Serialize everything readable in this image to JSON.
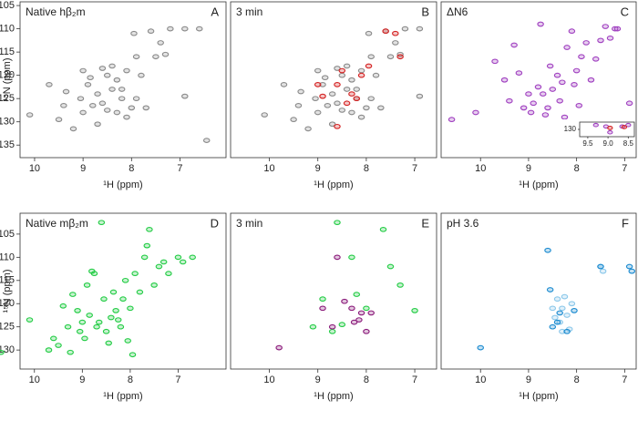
{
  "chart_data": [
    {
      "type": "scatter",
      "title": "Native hβ₂m",
      "panel_label": "A",
      "xlabel": "¹H (ppm)",
      "ylabel": "¹⁵N (ppm)",
      "xlim": [
        10.3,
        6.05
      ],
      "ylim": [
        104.2,
        137.7
      ],
      "xticks": [
        10,
        9,
        8,
        7
      ],
      "yticks": [
        105,
        110,
        115,
        120,
        125,
        130,
        135
      ],
      "series": [
        {
          "color": "#8a8a8a",
          "x": [
            10.1,
            9.5,
            9.2,
            9.7,
            9.35,
            9.4,
            9.0,
            9.05,
            8.9,
            9.0,
            8.85,
            8.7,
            8.6,
            8.5,
            8.4,
            8.3,
            8.1,
            8.2,
            8.0,
            7.9,
            7.8,
            8.5,
            8.6,
            8.3,
            8.1,
            7.7,
            7.5,
            7.3,
            7.4,
            7.6,
            7.2,
            6.9,
            6.6,
            7.9,
            7.95,
            8.4,
            6.9,
            8.7,
            6.45,
            8.8,
            8.2
          ],
          "y": [
            128.5,
            129.5,
            131.5,
            122,
            123.5,
            126.5,
            128,
            125,
            122,
            119,
            120.5,
            124,
            126,
            127.5,
            123,
            121,
            119,
            125,
            127,
            125,
            120,
            120,
            118.5,
            128,
            129,
            127,
            116,
            115.5,
            113,
            110.5,
            110,
            110,
            110,
            116,
            111,
            118,
            124.5,
            130.5,
            134,
            126.5,
            123
          ]
        }
      ]
    },
    {
      "type": "scatter",
      "title": "3 min",
      "panel_label": "B",
      "xlabel": "¹H (ppm)",
      "xlim": [
        10.8,
        6.55
      ],
      "ylim": [
        104.2,
        137.7
      ],
      "xticks": [
        10,
        9,
        8,
        7
      ],
      "series": [
        {
          "color": "#8a8a8a",
          "x": [
            10.1,
            9.5,
            9.2,
            9.7,
            9.35,
            9.4,
            9.0,
            9.05,
            8.9,
            9.0,
            8.85,
            8.7,
            8.6,
            8.5,
            8.4,
            8.3,
            8.1,
            8.2,
            8.0,
            7.9,
            7.8,
            8.5,
            8.6,
            8.3,
            8.1,
            7.7,
            7.5,
            7.3,
            7.4,
            7.6,
            7.2,
            6.9,
            7.9,
            7.95,
            8.4,
            6.9,
            8.7,
            8.8,
            8.2
          ],
          "y": [
            128.5,
            129.5,
            131.5,
            122,
            123.5,
            126.5,
            128,
            125,
            122,
            119,
            120.5,
            124,
            126,
            127.5,
            123,
            121,
            119,
            125,
            127,
            125,
            120,
            120,
            118.5,
            128,
            129,
            127,
            116,
            115.5,
            113,
            110.5,
            110,
            110,
            116,
            111,
            118,
            124.5,
            130.5,
            126.5,
            123
          ]
        },
        {
          "color": "#d42020",
          "x": [
            8.5,
            8.6,
            8.2,
            8.1,
            7.95,
            7.6,
            7.4,
            8.9,
            9.0,
            8.4,
            8.3,
            7.3,
            8.6
          ],
          "y": [
            119,
            122,
            125,
            120,
            118,
            110.5,
            111,
            124.5,
            122,
            126,
            124,
            116,
            131
          ]
        }
      ]
    },
    {
      "type": "scatter",
      "title": "ΔN6",
      "panel_label": "C",
      "xlabel": "¹H (ppm)",
      "xlim": [
        10.82,
        6.76
      ],
      "ylim": [
        104.2,
        137.7
      ],
      "xticks": [
        10,
        9,
        8,
        7
      ],
      "series": [
        {
          "color": "#a040c0",
          "x": [
            10.6,
            10.1,
            9.7,
            9.5,
            9.4,
            9.2,
            9.0,
            8.9,
            8.8,
            8.7,
            8.6,
            8.5,
            8.4,
            8.3,
            8.2,
            8.1,
            8.0,
            7.9,
            7.8,
            7.7,
            7.6,
            7.5,
            7.4,
            7.3,
            7.2,
            9.3,
            8.95,
            8.65,
            8.35,
            8.05,
            7.95,
            8.55,
            9.1,
            8.25,
            7.15,
            6.9,
            8.75
          ],
          "y": [
            129.5,
            128,
            117,
            121,
            125.5,
            119.5,
            124,
            126,
            122.5,
            124,
            127,
            123,
            120,
            121.5,
            114,
            110.5,
            119,
            116,
            113,
            121,
            116.5,
            112.5,
            109.5,
            112,
            110,
            113.5,
            128,
            128.5,
            125.5,
            122,
            126.5,
            118,
            127,
            129,
            110,
            126,
            109
          ]
        }
      ]
    },
    {
      "type": "scatter",
      "title": "Native mβ₂m",
      "panel_label": "D",
      "xlabel": "¹H (ppm)",
      "ylabel": "¹⁵N (ppm)",
      "xlim": [
        10.3,
        6.0
      ],
      "ylim": [
        100.5,
        134.1
      ],
      "xticks": [
        10,
        9,
        8,
        7
      ],
      "yticks": [
        105,
        110,
        115,
        120,
        125,
        130
      ],
      "series": [
        {
          "color": "#22cc44",
          "x": [
            10.7,
            10.1,
            9.7,
            9.6,
            9.5,
            9.4,
            9.3,
            9.2,
            9.1,
            9.0,
            8.95,
            8.9,
            8.85,
            8.8,
            8.7,
            8.6,
            8.55,
            8.5,
            8.4,
            8.35,
            8.3,
            8.2,
            8.1,
            8.05,
            8.0,
            7.9,
            7.8,
            7.7,
            7.6,
            7.5,
            7.4,
            7.3,
            7.2,
            7.0,
            6.9,
            6.7,
            9.25,
            8.65,
            8.45,
            8.15,
            7.95,
            7.65,
            9.05,
            8.75,
            8.25
          ],
          "y": [
            130.5,
            123.5,
            130,
            127.5,
            129,
            120.5,
            125,
            118,
            121.5,
            124,
            127.5,
            116,
            122.5,
            113,
            125,
            102.5,
            119,
            126,
            123,
            117.5,
            121.5,
            125,
            115,
            128,
            121,
            113.5,
            117.5,
            110,
            104,
            116,
            112,
            111,
            113.5,
            110,
            111,
            110,
            130.5,
            124,
            128.5,
            119,
            131,
            107.5,
            126,
            113.5,
            123.5
          ]
        }
      ]
    },
    {
      "type": "scatter",
      "title": "3 min",
      "panel_label": "E",
      "xlabel": "¹H (ppm)",
      "xlim": [
        10.8,
        6.55
      ],
      "ylim": [
        100.5,
        134.1
      ],
      "xticks": [
        10,
        9,
        8,
        7
      ],
      "series": [
        {
          "color": "#22cc44",
          "x": [
            8.6,
            8.9,
            7.65,
            7.5,
            8.0,
            8.5,
            8.2,
            9.1,
            7.3,
            8.7,
            7.0,
            8.3
          ],
          "y": [
            102.5,
            119,
            104,
            112,
            121,
            124.5,
            118,
            125,
            116,
            126,
            121.5,
            110
          ]
        },
        {
          "color": "#8a1a7a",
          "x": [
            8.6,
            8.3,
            8.15,
            8.1,
            8.45,
            8.7,
            7.9,
            8.25,
            8.9,
            8.0,
            9.8
          ],
          "y": [
            110,
            121,
            123.5,
            122,
            119.5,
            125,
            122,
            124,
            121,
            126,
            129.5
          ]
        }
      ]
    },
    {
      "type": "scatter",
      "title": "pH 3.6",
      "panel_label": "F",
      "xlabel": "¹H (ppm)",
      "xlim": [
        10.82,
        6.76
      ],
      "ylim": [
        100.5,
        134.1
      ],
      "xticks": [
        10,
        9,
        8,
        7
      ],
      "series": [
        {
          "color": "#8cc8ea",
          "x": [
            8.4,
            8.3,
            8.2,
            8.1,
            8.45,
            8.35,
            8.25,
            8.5,
            8.15,
            8.3,
            7.5,
            7.45
          ],
          "y": [
            119,
            121,
            122.5,
            120,
            123,
            124,
            118.5,
            121,
            125.5,
            126,
            112,
            113
          ]
        },
        {
          "color": "#1a8ad0",
          "x": [
            8.6,
            8.55,
            7.5,
            6.9,
            6.85,
            8.4,
            8.2,
            8.5,
            8.35,
            8.05,
            10.0
          ],
          "y": [
            108.5,
            117,
            112,
            112,
            113,
            124,
            126,
            125,
            122,
            121.5,
            129.5
          ]
        }
      ]
    },
    {
      "type": "scatter",
      "xlim": [
        9.7,
        8.35
      ],
      "ylim": [
        127.5,
        132.5
      ],
      "xticks": [
        9.5,
        {
          "value": 9,
          "label": "9.0"
        },
        8.5
      ],
      "yticks": [
        130
      ],
      "series": [
        {
          "color": "#a040c0",
          "x": [
            9.3,
            9.05,
            8.95,
            8.65,
            8.5
          ],
          "y": [
            128.5,
            129,
            131,
            129,
            128.5
          ]
        },
        {
          "color": "#d42020",
          "x": [
            8.95,
            8.6
          ],
          "y": [
            129.5,
            129.2
          ]
        }
      ]
    }
  ]
}
